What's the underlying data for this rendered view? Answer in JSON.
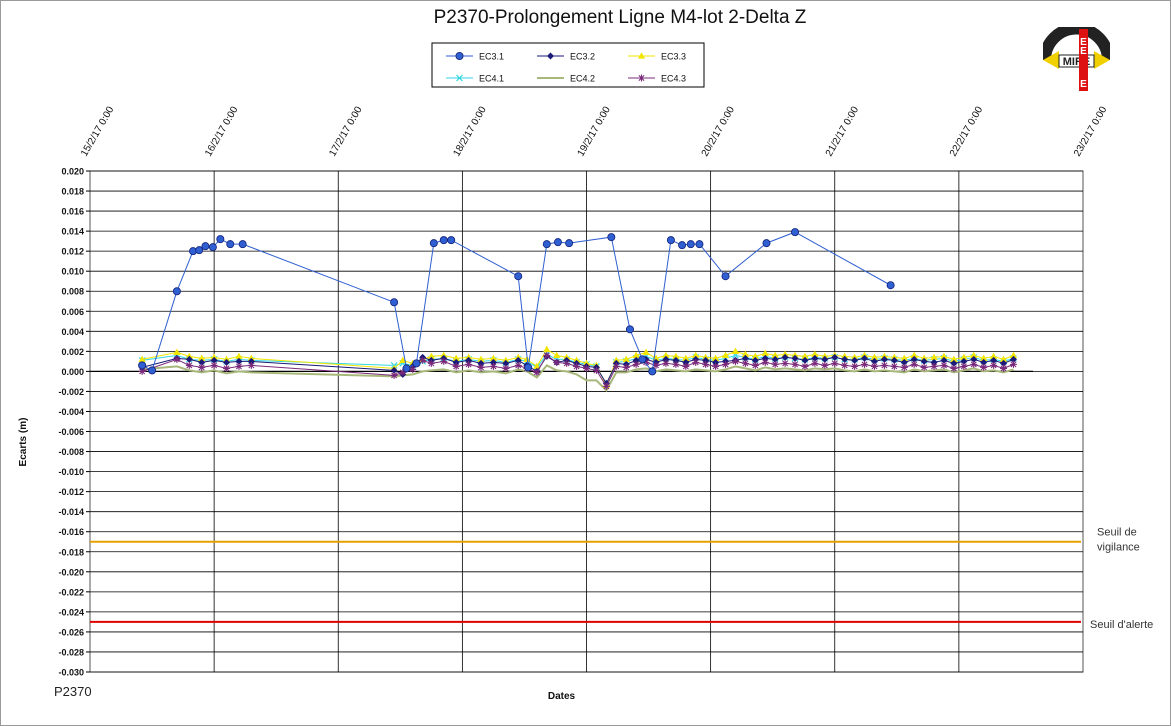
{
  "chart_data": {
    "type": "line",
    "title": "P2370-Prolongement  Ligne  M4-lot  2-Delta  Z",
    "footer": "P2370",
    "xlabel": "Dates",
    "ylabel": "Ecarts (m)",
    "xlim": [
      "15/2/17 0:00",
      "23/2/17 0:00"
    ],
    "ylim": [
      -0.03,
      0.02
    ],
    "x_tick_labels": [
      "15/2/17 0:00",
      "16/2/17 0:00",
      "17/2/17 0:00",
      "18/2/17 0:00",
      "19/2/17 0:00",
      "20/2/17 0:00",
      "21/2/17 0:00",
      "22/2/17 0:00",
      "23/2/17 0:00"
    ],
    "y_tick_labels": [
      "0.020",
      "0.018",
      "0.016",
      "0.014",
      "0.012",
      "0.010",
      "0.008",
      "0.006",
      "0.004",
      "0.002",
      "0.000",
      "-0.002",
      "-0.004",
      "-0.006",
      "-0.008",
      "-0.010",
      "-0.012",
      "-0.014",
      "-0.016",
      "-0.018",
      "-0.020",
      "-0.022",
      "-0.024",
      "-0.026",
      "-0.028",
      "-0.030"
    ],
    "grid": true,
    "legend_position": "top",
    "thresholds": [
      {
        "name": "Seuil de vigilance",
        "label_lines": [
          "Seuil de",
          "vigilance"
        ],
        "value": -0.017,
        "color": "#e6a000"
      },
      {
        "name": "Seuil d'alerte",
        "label_lines": [
          "Seuil d'alerte"
        ],
        "value": -0.025,
        "color": "#e00000"
      }
    ],
    "series": [
      {
        "name": "EC3.1",
        "color": "#2f5fd0",
        "marker": "circle",
        "x": [
          0.42,
          0.5,
          0.7,
          0.83,
          0.88,
          0.93,
          0.99,
          1.05,
          1.13,
          1.23,
          2.45,
          2.55,
          2.63,
          2.77,
          2.85,
          2.91,
          3.45,
          3.53,
          3.68,
          3.77,
          3.86,
          4.2,
          4.35,
          4.45,
          4.53,
          4.68,
          4.77,
          4.84,
          4.91,
          5.12,
          5.45,
          5.68,
          6.45
        ],
        "y": [
          0.0006,
          0.0001,
          0.008,
          0.012,
          0.0121,
          0.0125,
          0.0124,
          0.0132,
          0.0127,
          0.0127,
          0.0069,
          0.0003,
          0.0008,
          0.0128,
          0.0131,
          0.0131,
          0.0095,
          0.0004,
          0.0127,
          0.0129,
          0.0128,
          0.0134,
          0.0042,
          0.0012,
          0.0,
          0.0131,
          0.0126,
          0.0127,
          0.0127,
          0.0095,
          0.0128,
          0.0139,
          0.0086
        ]
      },
      {
        "name": "EC3.2",
        "color": "#1a1a78",
        "marker": "diamond",
        "x": [
          0.42,
          0.7,
          0.8,
          0.9,
          1.0,
          1.1,
          1.2,
          1.3,
          2.45,
          2.52,
          2.6,
          2.68,
          2.75,
          2.85,
          2.95,
          3.05,
          3.15,
          3.25,
          3.35,
          3.45,
          3.52,
          3.6,
          3.68,
          3.76,
          3.84,
          3.92,
          4.0,
          4.08,
          4.16,
          4.24,
          4.32,
          4.4,
          4.48,
          4.56,
          4.64,
          4.72,
          4.8,
          4.88,
          4.96,
          5.04,
          5.12,
          5.2,
          5.28,
          5.36,
          5.44,
          5.52,
          5.6,
          5.68,
          5.76,
          5.84,
          5.92,
          6.0,
          6.08,
          6.16,
          6.24,
          6.32,
          6.4,
          6.48,
          6.56,
          6.64,
          6.72,
          6.8,
          6.88,
          6.96,
          7.04,
          7.12,
          7.2,
          7.28,
          7.36,
          7.44
        ],
        "y": [
          0.0004,
          0.0013,
          0.0012,
          0.0009,
          0.0011,
          0.0009,
          0.001,
          0.001,
          0.0001,
          -0.0003,
          0.0005,
          0.0014,
          0.0011,
          0.0013,
          0.0009,
          0.0011,
          0.0008,
          0.0009,
          0.0008,
          0.0011,
          0.0006,
          0.0,
          0.0015,
          0.0009,
          0.0011,
          0.0008,
          0.0005,
          0.0004,
          -0.0012,
          0.0008,
          0.0007,
          0.0011,
          0.0012,
          0.0009,
          0.0012,
          0.0011,
          0.0009,
          0.0012,
          0.0011,
          0.0009,
          0.001,
          0.0011,
          0.0013,
          0.0011,
          0.0013,
          0.0012,
          0.0014,
          0.0013,
          0.0011,
          0.0013,
          0.0012,
          0.0014,
          0.0012,
          0.0011,
          0.0013,
          0.001,
          0.0012,
          0.0011,
          0.0009,
          0.0012,
          0.001,
          0.0009,
          0.0011,
          0.0008,
          0.001,
          0.0012,
          0.0009,
          0.0011,
          0.0008,
          0.0012
        ]
      },
      {
        "name": "EC3.3",
        "color": "#f2e600",
        "marker": "triangle",
        "x": [
          0.42,
          0.7,
          0.8,
          0.9,
          1.0,
          1.1,
          1.2,
          1.3,
          2.45,
          2.52,
          2.6,
          2.68,
          2.75,
          2.85,
          2.95,
          3.05,
          3.15,
          3.25,
          3.35,
          3.45,
          3.52,
          3.6,
          3.68,
          3.76,
          3.84,
          3.92,
          4.0,
          4.08,
          4.16,
          4.24,
          4.32,
          4.4,
          4.48,
          4.56,
          4.64,
          4.72,
          4.8,
          4.88,
          4.96,
          5.04,
          5.12,
          5.2,
          5.28,
          5.36,
          5.44,
          5.52,
          5.6,
          5.68,
          5.76,
          5.84,
          5.92,
          6.0,
          6.08,
          6.16,
          6.24,
          6.32,
          6.4,
          6.48,
          6.56,
          6.64,
          6.72,
          6.8,
          6.88,
          6.96,
          7.04,
          7.12,
          7.2,
          7.28,
          7.36,
          7.44
        ],
        "y": [
          0.0012,
          0.0019,
          0.0015,
          0.0013,
          0.0014,
          0.0012,
          0.0015,
          0.0013,
          0.0003,
          0.0011,
          0.0008,
          0.0012,
          0.0015,
          0.0016,
          0.0013,
          0.0014,
          0.0012,
          0.0013,
          0.0011,
          0.0014,
          0.0012,
          0.0005,
          0.0022,
          0.0016,
          0.0014,
          0.0011,
          0.0008,
          0.0006,
          -0.0014,
          0.0011,
          0.0012,
          0.0016,
          0.0019,
          0.0013,
          0.0016,
          0.0015,
          0.0013,
          0.0016,
          0.0014,
          0.0013,
          0.0016,
          0.002,
          0.0017,
          0.0015,
          0.0018,
          0.0016,
          0.0017,
          0.0016,
          0.0015,
          0.0017,
          0.0015,
          0.0016,
          0.0015,
          0.0014,
          0.0016,
          0.0014,
          0.0015,
          0.0014,
          0.0013,
          0.0016,
          0.0013,
          0.0014,
          0.0015,
          0.0012,
          0.0014,
          0.0016,
          0.0013,
          0.0015,
          0.0012,
          0.0016
        ]
      },
      {
        "name": "EC4.1",
        "color": "#33d6e6",
        "marker": "x",
        "x": [
          0.42,
          0.7,
          0.8,
          0.9,
          1.0,
          1.1,
          1.2,
          1.3,
          2.45,
          2.52,
          2.6,
          2.68,
          2.75,
          2.85,
          2.95,
          3.05,
          3.15,
          3.25,
          3.35,
          3.45,
          3.52,
          3.6,
          3.68,
          3.76,
          3.84,
          3.92,
          4.0,
          4.08,
          4.16,
          4.24,
          4.32,
          4.4,
          4.48,
          4.56,
          4.64,
          4.72,
          4.8,
          4.88,
          4.96,
          5.04,
          5.12,
          5.2,
          5.28,
          5.36,
          5.44,
          5.52,
          5.6,
          5.68,
          5.76,
          5.84,
          5.92,
          6.0,
          6.08,
          6.16,
          6.24,
          6.32,
          6.4,
          6.48,
          6.56,
          6.64,
          6.72,
          6.8,
          6.88,
          6.96,
          7.04,
          7.12,
          7.2,
          7.28,
          7.36,
          7.44
        ],
        "y": [
          0.0011,
          0.0016,
          0.0012,
          0.0011,
          0.0012,
          0.001,
          0.0012,
          0.0011,
          0.0006,
          0.0008,
          0.0006,
          0.001,
          0.0012,
          0.0013,
          0.001,
          0.0012,
          0.001,
          0.0011,
          0.0009,
          0.0012,
          0.001,
          0.0004,
          0.0017,
          0.0012,
          0.0012,
          0.0009,
          0.0007,
          0.0005,
          -0.0013,
          0.0009,
          0.001,
          0.0013,
          0.0015,
          0.0011,
          0.0013,
          0.0012,
          0.0011,
          0.0014,
          0.0012,
          0.0011,
          0.0013,
          0.0016,
          0.0014,
          0.0012,
          0.0015,
          0.0013,
          0.0014,
          0.0013,
          0.0012,
          0.0014,
          0.0013,
          0.0014,
          0.0012,
          0.0012,
          0.0014,
          0.0012,
          0.0013,
          0.0012,
          0.0011,
          0.0013,
          0.0011,
          0.0012,
          0.0013,
          0.001,
          0.0012,
          0.0014,
          0.0011,
          0.0012,
          0.001,
          0.0013
        ]
      },
      {
        "name": "EC4.2",
        "color": "#a8b87a",
        "marker": "none",
        "x": [
          0.42,
          0.7,
          0.8,
          0.9,
          1.0,
          1.1,
          1.2,
          1.3,
          2.45,
          2.52,
          2.6,
          2.68,
          2.75,
          2.85,
          2.95,
          3.05,
          3.15,
          3.25,
          3.35,
          3.45,
          3.52,
          3.6,
          3.68,
          3.76,
          3.84,
          3.92,
          4.0,
          4.08,
          4.16,
          4.24,
          4.32,
          4.4,
          4.48,
          4.56,
          4.64,
          4.72,
          4.8,
          4.88,
          4.96,
          5.04,
          5.12,
          5.2,
          5.28,
          5.36,
          5.44,
          5.52,
          5.6,
          5.68,
          5.76,
          5.84,
          5.92,
          6.0,
          6.08,
          6.16,
          6.24,
          6.32,
          6.4,
          6.48,
          6.56,
          6.64,
          6.72,
          6.8,
          6.88,
          6.96,
          7.04,
          7.12,
          7.2,
          7.28,
          7.36,
          7.44
        ],
        "y": [
          0.0002,
          0.0005,
          0.0001,
          -0.0001,
          0.0001,
          -0.0002,
          0.0,
          -0.0001,
          -0.0005,
          -0.0004,
          -0.0003,
          0.0,
          0.0001,
          0.0002,
          -0.0001,
          0.0001,
          -0.0001,
          0.0,
          -0.0002,
          0.0002,
          0.0,
          -0.0006,
          0.0006,
          0.0001,
          0.0,
          -0.0003,
          -0.0009,
          -0.0009,
          -0.0019,
          -0.0001,
          -0.0001,
          0.0002,
          0.0003,
          0.0,
          0.0002,
          0.0001,
          0.0,
          0.0002,
          0.0001,
          0.0,
          0.0002,
          0.0005,
          0.0003,
          0.0001,
          0.0004,
          0.0002,
          0.0003,
          0.0002,
          0.0001,
          0.0003,
          0.0002,
          0.0003,
          0.0001,
          0.0,
          0.0002,
          0.0,
          0.0001,
          0.0,
          -0.0001,
          0.0002,
          0.0,
          0.0001,
          0.0002,
          -0.0001,
          0.0001,
          0.0003,
          0.0,
          0.0001,
          -0.0001,
          0.0002
        ]
      },
      {
        "name": "EC4.3",
        "color": "#7a2a7a",
        "marker": "star",
        "x": [
          0.42,
          0.7,
          0.8,
          0.9,
          1.0,
          1.1,
          1.2,
          1.3,
          2.45,
          2.52,
          2.6,
          2.68,
          2.75,
          2.85,
          2.95,
          3.05,
          3.15,
          3.25,
          3.35,
          3.45,
          3.52,
          3.6,
          3.68,
          3.76,
          3.84,
          3.92,
          4.0,
          4.08,
          4.16,
          4.24,
          4.32,
          4.4,
          4.48,
          4.56,
          4.64,
          4.72,
          4.8,
          4.88,
          4.96,
          5.04,
          5.12,
          5.2,
          5.28,
          5.36,
          5.44,
          5.52,
          5.6,
          5.68,
          5.76,
          5.84,
          5.92,
          6.0,
          6.08,
          6.16,
          6.24,
          6.32,
          6.4,
          6.48,
          6.56,
          6.64,
          6.72,
          6.8,
          6.88,
          6.96,
          7.04,
          7.12,
          7.2,
          7.28,
          7.36,
          7.44
        ],
        "y": [
          0.0,
          0.0012,
          0.0006,
          0.0004,
          0.0006,
          0.0003,
          0.0005,
          0.0006,
          -0.0004,
          -0.0001,
          0.0002,
          0.0011,
          0.0008,
          0.001,
          0.0005,
          0.0007,
          0.0004,
          0.0005,
          0.0003,
          0.0006,
          0.0003,
          -0.0001,
          0.0016,
          0.0009,
          0.0008,
          0.0005,
          0.0003,
          0.0001,
          -0.0015,
          0.0005,
          0.0004,
          0.0007,
          0.0009,
          0.0006,
          0.0008,
          0.0007,
          0.0005,
          0.0009,
          0.0007,
          0.0005,
          0.0007,
          0.001,
          0.0008,
          0.0006,
          0.0009,
          0.0007,
          0.0008,
          0.0007,
          0.0005,
          0.0008,
          0.0006,
          0.0008,
          0.0006,
          0.0005,
          0.0007,
          0.0005,
          0.0006,
          0.0005,
          0.0004,
          0.0007,
          0.0004,
          0.0005,
          0.0006,
          0.0003,
          0.0005,
          0.0007,
          0.0004,
          0.0006,
          0.0003,
          0.0007
        ]
      }
    ]
  },
  "logo": {
    "text": "MIRE",
    "side_letters": [
      "E",
      "E",
      "E"
    ]
  }
}
